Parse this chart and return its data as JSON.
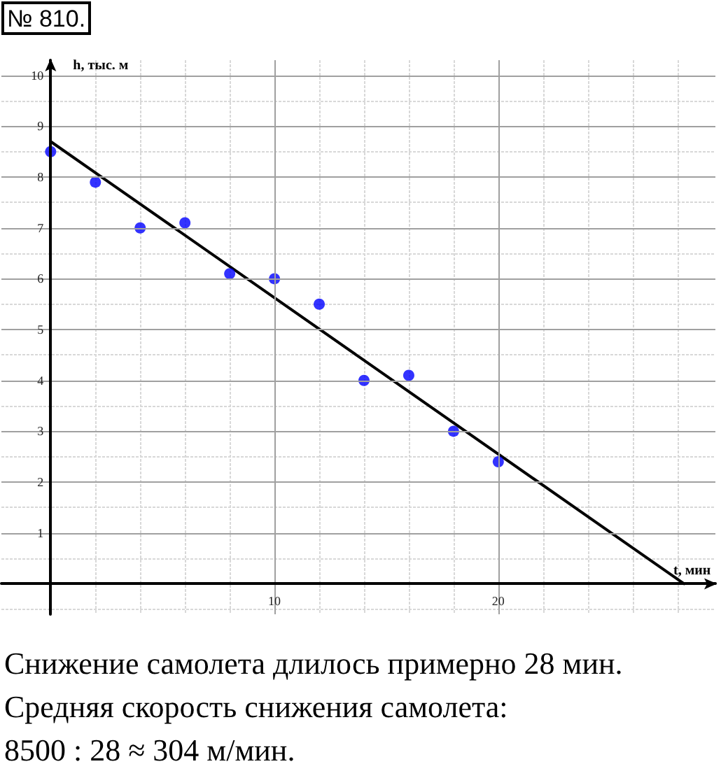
{
  "chart_data": {
    "type": "scatter",
    "title": "№ 810.",
    "xlabel": "t, мин",
    "ylabel": "h, тыс. м",
    "annotations": [
      "Снижение самолета длилось примерно 28 мин.",
      "Средняя скорость снижения самолета:",
      "8500 : 28 ≈ 304 м/мин."
    ],
    "x": [
      0,
      2,
      4,
      6,
      8,
      10,
      12,
      14,
      16,
      18,
      20
    ],
    "series": [
      {
        "color": "#0000ff",
        "values": [
          8.5,
          7.9,
          7.0,
          7.1,
          6.1,
          6.0,
          5.5,
          4.0,
          4.1,
          3.0,
          2.4
        ]
      },
      {
        "type": "line",
        "color": "#000000",
        "x": [
          0,
          28.3
        ],
        "values": [
          8.7,
          0
        ],
        "marker": "none"
      }
    ],
    "xlim": [
      -2.2,
      29.7
    ],
    "ylim": [
      -0.6,
      10.3
    ],
    "xticks": [
      {
        "value": 2,
        "label": null
      },
      {
        "value": 4,
        "label": null
      },
      {
        "value": 6,
        "label": null
      },
      {
        "value": 8,
        "label": null
      },
      10,
      {
        "value": 12,
        "label": null
      },
      {
        "value": 14,
        "label": null
      },
      {
        "value": 16,
        "label": null
      },
      {
        "value": 18,
        "label": null
      },
      20,
      {
        "value": 22,
        "label": null
      },
      {
        "value": 24,
        "label": null
      },
      {
        "value": 26,
        "label": null
      },
      {
        "value": 28,
        "label": null
      }
    ],
    "yticks": [
      {
        "value": -0.5,
        "label": null
      },
      {
        "value": 0.5,
        "label": null
      },
      1,
      {
        "value": 1.5,
        "label": null
      },
      2,
      {
        "value": 2.5,
        "label": null
      },
      3,
      {
        "value": 3.5,
        "label": null
      },
      4,
      {
        "value": 4.5,
        "label": null
      },
      5,
      {
        "value": 5.5,
        "label": null
      },
      6,
      {
        "value": 6.5,
        "label": null
      },
      7,
      {
        "value": 7.5,
        "label": null
      },
      8,
      {
        "value": 8.5,
        "label": null
      },
      9,
      {
        "value": 9.5,
        "label": null
      },
      10
    ],
    "grid": true,
    "marker": "circle"
  }
}
